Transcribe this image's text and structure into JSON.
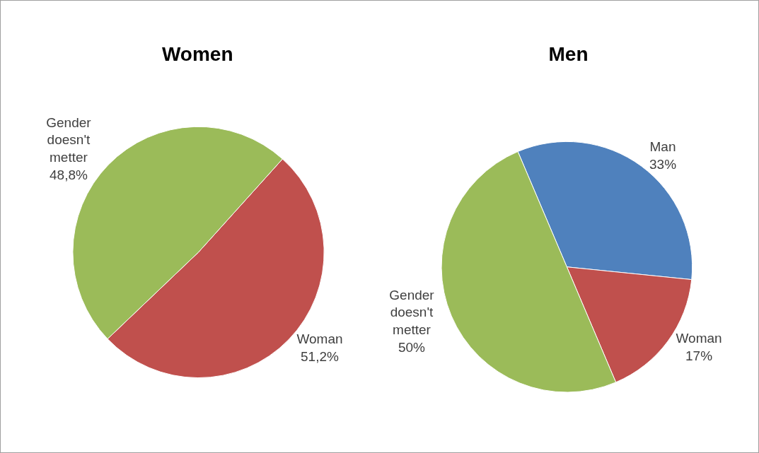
{
  "chart_data": [
    {
      "type": "pie",
      "title": "Women",
      "categories": [
        "Woman",
        "Gender doesn't metter"
      ],
      "values": [
        51.2,
        48.8
      ],
      "colors": [
        "#c0504d",
        "#9bbb59"
      ],
      "value_labels": [
        "51,2%",
        "48,8%"
      ],
      "legend": false
    },
    {
      "type": "pie",
      "title": "Men",
      "categories": [
        "Man",
        "Woman",
        "Gender doesn't metter"
      ],
      "values": [
        33,
        17,
        50
      ],
      "colors": [
        "#4f81bd",
        "#c0504d",
        "#9bbb59"
      ],
      "value_labels": [
        "33%",
        "17%",
        "50%"
      ],
      "legend": false
    }
  ]
}
